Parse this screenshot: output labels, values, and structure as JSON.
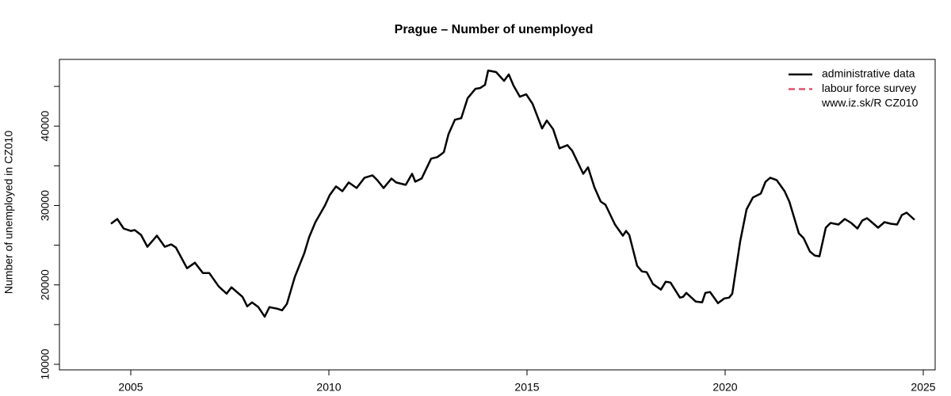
{
  "chart_data": {
    "type": "line",
    "title": "Prague – Number of unemployed",
    "y_label": "Number of unemployed in CZ010",
    "legend_note": "www.iz.sk/R CZ010",
    "legend_position": "top-right",
    "x": [
      2004.5,
      2004.66,
      2004.82,
      2005,
      2005.1,
      2005.26,
      2005.42,
      2005.66,
      2005.86,
      2006.02,
      2006.14,
      2006.42,
      2006.62,
      2006.82,
      2006.98,
      2007.22,
      2007.42,
      2007.54,
      2007.82,
      2007.94,
      2008.06,
      2008.22,
      2008.38,
      2008.5,
      2008.7,
      2008.82,
      2008.94,
      2009.14,
      2009.38,
      2009.5,
      2009.66,
      2009.9,
      2010.02,
      2010.18,
      2010.34,
      2010.5,
      2010.7,
      2010.9,
      2011.1,
      2011.22,
      2011.38,
      2011.58,
      2011.7,
      2011.94,
      2012.1,
      2012.18,
      2012.34,
      2012.58,
      2012.74,
      2012.9,
      2013.02,
      2013.18,
      2013.34,
      2013.5,
      2013.7,
      2013.82,
      2013.94,
      2014.02,
      2014.22,
      2014.42,
      2014.54,
      2014.66,
      2014.82,
      2014.98,
      2015.14,
      2015.38,
      2015.5,
      2015.66,
      2015.82,
      2016.02,
      2016.14,
      2016.42,
      2016.54,
      2016.7,
      2016.86,
      2016.98,
      2017.22,
      2017.42,
      2017.5,
      2017.58,
      2017.78,
      2017.9,
      2018.02,
      2018.18,
      2018.38,
      2018.5,
      2018.62,
      2018.86,
      2018.94,
      2019.02,
      2019.26,
      2019.42,
      2019.5,
      2019.62,
      2019.82,
      2019.98,
      2020.1,
      2020.18,
      2020.38,
      2020.54,
      2020.7,
      2020.9,
      2021.02,
      2021.14,
      2021.3,
      2021.5,
      2021.62,
      2021.86,
      2021.98,
      2022.14,
      2022.26,
      2022.38,
      2022.54,
      2022.66,
      2022.86,
      2023.02,
      2023.18,
      2023.34,
      2023.46,
      2023.58,
      2023.7,
      2023.86,
      2024.02,
      2024.18,
      2024.34,
      2024.46,
      2024.58,
      2024.78
    ],
    "series": [
      {
        "name": "administrative data",
        "color": "#000000",
        "dash": "solid",
        "values": [
          27700,
          28300,
          27100,
          26800,
          26900,
          26300,
          24800,
          26200,
          24800,
          25100,
          24700,
          22100,
          22800,
          21500,
          21500,
          19800,
          18900,
          19700,
          18500,
          17300,
          17800,
          17200,
          16000,
          17200,
          17000,
          16800,
          17600,
          21000,
          24000,
          26000,
          27900,
          30000,
          31300,
          32400,
          31800,
          32900,
          32200,
          33500,
          33800,
          33200,
          32200,
          33400,
          32900,
          32600,
          34000,
          33000,
          33400,
          35900,
          36100,
          36700,
          39000,
          40800,
          41000,
          43500,
          44700,
          44800,
          45200,
          47000,
          46800,
          45700,
          46500,
          45100,
          43700,
          44000,
          42800,
          39700,
          40700,
          39600,
          37200,
          37600,
          36900,
          34000,
          34800,
          32300,
          30500,
          30100,
          27600,
          26200,
          26800,
          26300,
          22400,
          21700,
          21600,
          20100,
          19400,
          20400,
          20300,
          18400,
          18500,
          19000,
          17900,
          17800,
          19000,
          19100,
          17700,
          18300,
          18400,
          18900,
          25500,
          29500,
          31000,
          31500,
          33000,
          33500,
          33200,
          31800,
          30500,
          26500,
          25900,
          24200,
          23700,
          23600,
          27200,
          27800,
          27600,
          28300,
          27800,
          27100,
          28100,
          28400,
          27900,
          27200,
          27900,
          27700,
          27600,
          28800,
          29100,
          28200
        ]
      },
      {
        "name": "labour force survey",
        "color": "#df536b",
        "dash": "dashed",
        "values": [
          null,
          null,
          null,
          null,
          null,
          null,
          null,
          null,
          null,
          null,
          null,
          null,
          null,
          null,
          null,
          null,
          null,
          null,
          null,
          null,
          null,
          null,
          null,
          null,
          null,
          null,
          null,
          null,
          null,
          null,
          null,
          null,
          null,
          null,
          null,
          null,
          null,
          null,
          null,
          null,
          null,
          null,
          null,
          null,
          null,
          null,
          null,
          null,
          null,
          null,
          null,
          null,
          null,
          null,
          null,
          null,
          null,
          null,
          null,
          null,
          null,
          null,
          null,
          null,
          null,
          null,
          null,
          null,
          null,
          null,
          null,
          null,
          null,
          null,
          null,
          null,
          null,
          null,
          null,
          null,
          null,
          null,
          null,
          null,
          null,
          null,
          null,
          null,
          null,
          null,
          null,
          null,
          null,
          null,
          null,
          null,
          null,
          null,
          null,
          null,
          null,
          null,
          null,
          null,
          null,
          null,
          null,
          null,
          null,
          null,
          null,
          null,
          null,
          null,
          null,
          null,
          null,
          null,
          null,
          null,
          null,
          null,
          null,
          null,
          null,
          null,
          null,
          null
        ]
      }
    ],
    "xlim": [
      2003.2,
      2025.3
    ],
    "ylim": [
      9300,
      48400
    ],
    "xticks": [
      2005,
      2010,
      2015,
      2020,
      2025
    ],
    "yticks": [
      10000,
      20000,
      30000,
      40000
    ],
    "yticks_unlabeled": [
      15000,
      25000,
      35000,
      45000
    ],
    "grid": false
  }
}
